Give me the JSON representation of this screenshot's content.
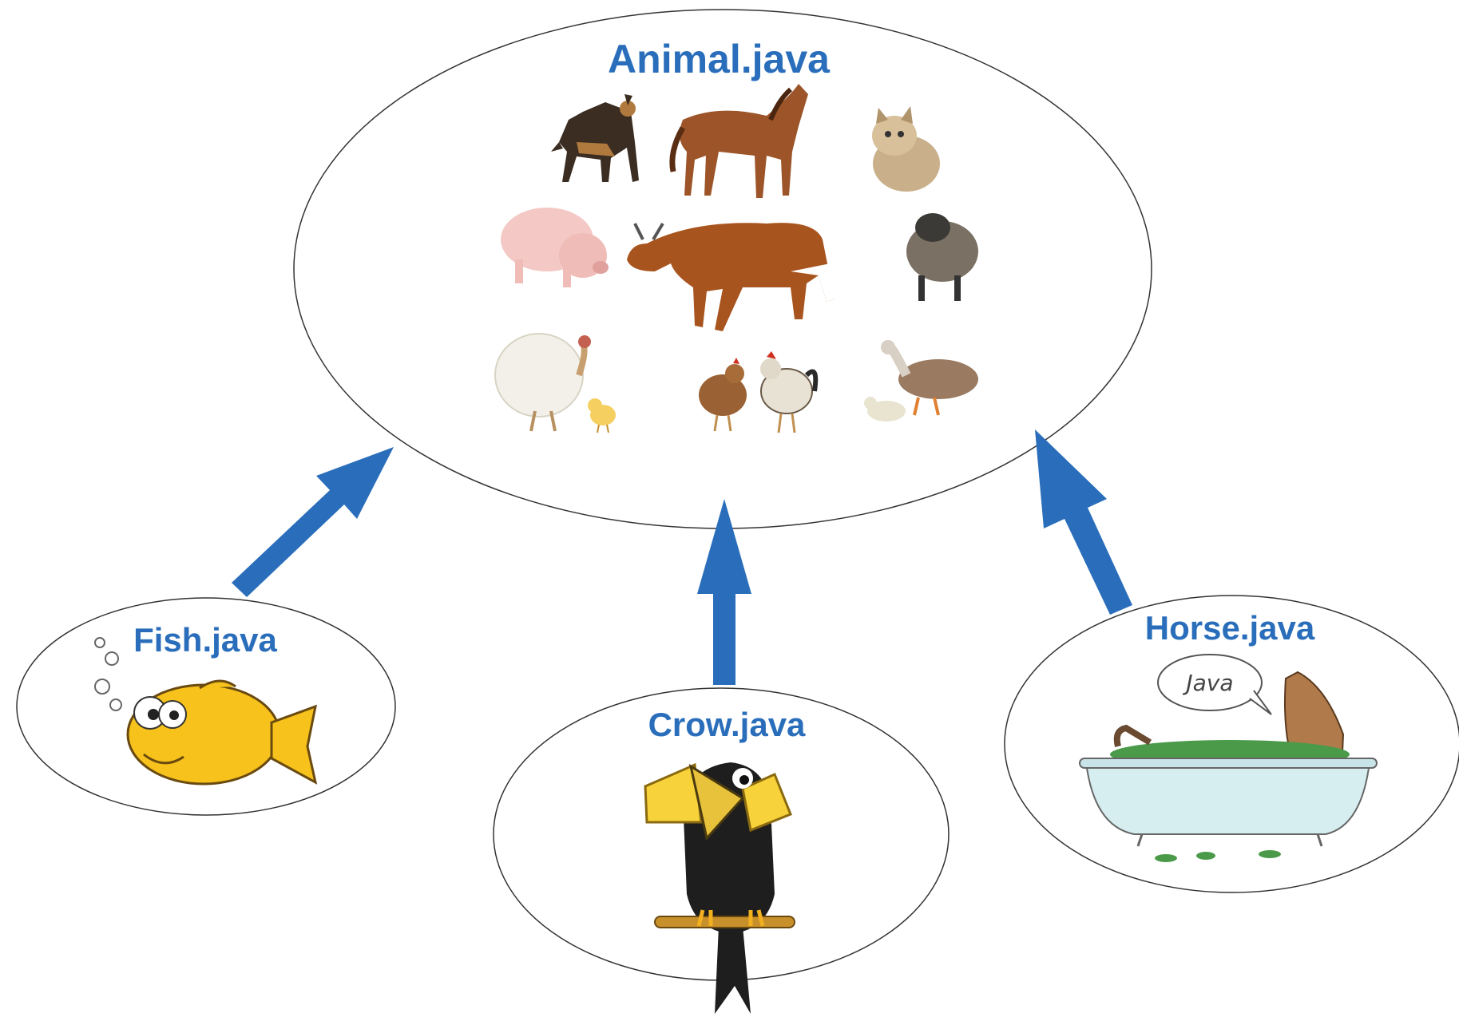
{
  "diagram": {
    "parent": {
      "label": "Animal.java",
      "illustrations": [
        "dog",
        "horse",
        "kitten",
        "pig",
        "cow",
        "sheep",
        "turkey",
        "chick",
        "hen",
        "rooster",
        "goose",
        "gosling"
      ]
    },
    "children": [
      {
        "id": "fish",
        "label": "Fish.java",
        "illustration": "goldfish with bubbles"
      },
      {
        "id": "crow",
        "label": "Crow.java",
        "illustration": "crow holding cheese on a branch"
      },
      {
        "id": "horse",
        "label": "Horse.java",
        "illustration": "horse in a bathtub",
        "speech_bubble": "Java"
      }
    ],
    "relation": "inherits",
    "arrow_color": "#2a6ebb",
    "label_color": "#2a6ebb"
  }
}
